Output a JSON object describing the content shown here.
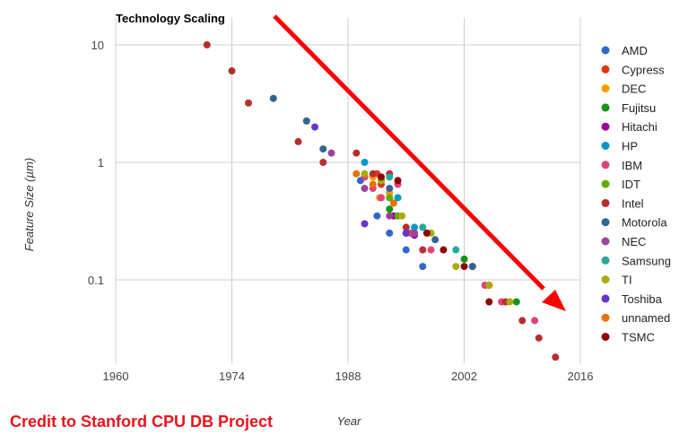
{
  "chart_data": {
    "type": "scatter",
    "title": "Technology Scaling",
    "xlabel": "Year",
    "ylabel": "Feature Size (µm)",
    "xlim": [
      1960,
      2016
    ],
    "ylim": [
      0.02,
      10
    ],
    "y_scale": "log",
    "x_ticks": [
      1960,
      1974,
      1988,
      2002,
      2016
    ],
    "y_ticks": [
      10,
      1,
      0.1
    ],
    "y_tick_labels": [
      "10",
      "1",
      "0.1"
    ],
    "grid": true,
    "legend_position": "right",
    "series": [
      {
        "name": "AMD",
        "color": "#3366cc",
        "points": [
          [
            1989.5,
            0.7
          ],
          [
            1991.5,
            0.35
          ],
          [
            1993,
            0.25
          ],
          [
            1995,
            0.18
          ],
          [
            1997,
            0.13
          ]
        ]
      },
      {
        "name": "Cypress",
        "color": "#dc3912",
        "points": [
          [
            1991.5,
            0.8
          ],
          [
            1992,
            0.65
          ],
          [
            1993,
            0.5
          ]
        ]
      },
      {
        "name": "DEC",
        "color": "#ff9900",
        "points": [
          [
            1991,
            0.75
          ],
          [
            1991.8,
            0.5
          ],
          [
            1993,
            0.55
          ]
        ]
      },
      {
        "name": "Fujitsu",
        "color": "#109618",
        "points": [
          [
            1993,
            0.4
          ],
          [
            1995,
            0.25
          ],
          [
            2002,
            0.15
          ],
          [
            2008.3,
            0.065
          ]
        ]
      },
      {
        "name": "Hitachi",
        "color": "#990099",
        "points": [
          [
            1993.5,
            0.35
          ],
          [
            1996,
            0.24
          ]
        ]
      },
      {
        "name": "HP",
        "color": "#0099c6",
        "points": [
          [
            1990,
            1.0
          ],
          [
            1992,
            0.7
          ],
          [
            1994,
            0.5
          ],
          [
            1996,
            0.28
          ]
        ]
      },
      {
        "name": "IBM",
        "color": "#dd4477",
        "points": [
          [
            1990,
            0.75
          ],
          [
            1991,
            0.6
          ],
          [
            1992,
            0.5
          ],
          [
            1994,
            0.65
          ],
          [
            1995.5,
            0.25
          ],
          [
            1998,
            0.18
          ],
          [
            2004.5,
            0.09
          ],
          [
            2006.5,
            0.065
          ],
          [
            2010.5,
            0.045
          ]
        ]
      },
      {
        "name": "IDT",
        "color": "#66aa00",
        "points": [
          [
            1993,
            0.5
          ],
          [
            1994,
            0.35
          ],
          [
            1996,
            0.25
          ]
        ]
      },
      {
        "name": "Intel",
        "color": "#b82e2e",
        "points": [
          [
            1971,
            10
          ],
          [
            1974,
            6
          ],
          [
            1976,
            3.2
          ],
          [
            1982,
            1.5
          ],
          [
            1985,
            1.0
          ],
          [
            1989,
            1.2
          ],
          [
            1991,
            0.8
          ],
          [
            1993,
            0.8
          ],
          [
            1995,
            0.28
          ],
          [
            1997,
            0.18
          ],
          [
            2003,
            0.13
          ],
          [
            2005,
            0.09
          ],
          [
            2007,
            0.065
          ],
          [
            2009,
            0.045
          ],
          [
            2011,
            0.032
          ],
          [
            2013,
            0.022
          ]
        ]
      },
      {
        "name": "Motorola",
        "color": "#316395",
        "points": [
          [
            1979,
            3.5
          ],
          [
            1983,
            2.25
          ],
          [
            1985,
            1.3
          ],
          [
            1993,
            0.6
          ],
          [
            1998.5,
            0.22
          ],
          [
            2003,
            0.13
          ]
        ]
      },
      {
        "name": "NEC",
        "color": "#994499",
        "points": [
          [
            1986,
            1.2
          ],
          [
            1990,
            0.6
          ],
          [
            1993,
            0.35
          ],
          [
            1996,
            0.25
          ]
        ]
      },
      {
        "name": "Samsung",
        "color": "#22aa99",
        "points": [
          [
            1993,
            0.75
          ],
          [
            1997,
            0.28
          ],
          [
            2001,
            0.18
          ]
        ]
      },
      {
        "name": "TI",
        "color": "#aaaa11",
        "points": [
          [
            1990,
            0.8
          ],
          [
            1992,
            0.7
          ],
          [
            1994.5,
            0.35
          ],
          [
            1998,
            0.25
          ],
          [
            2001,
            0.13
          ],
          [
            2005,
            0.09
          ],
          [
            2007.5,
            0.065
          ]
        ]
      },
      {
        "name": "Toshiba",
        "color": "#6633cc",
        "points": [
          [
            1984,
            2.0
          ],
          [
            1990,
            0.3
          ],
          [
            1995,
            0.25
          ]
        ]
      },
      {
        "name": "unnamed",
        "color": "#e67300",
        "points": [
          [
            1989,
            0.8
          ],
          [
            1991,
            0.65
          ],
          [
            1993.5,
            0.45
          ]
        ]
      },
      {
        "name": "TSMC",
        "color": "#8b0707",
        "points": [
          [
            1992,
            0.75
          ],
          [
            1994,
            0.7
          ],
          [
            1997.5,
            0.25
          ],
          [
            1999.5,
            0.18
          ],
          [
            2002,
            0.13
          ],
          [
            2005,
            0.065
          ]
        ]
      }
    ]
  },
  "credit": "Credit to Stanford CPU DB Project"
}
